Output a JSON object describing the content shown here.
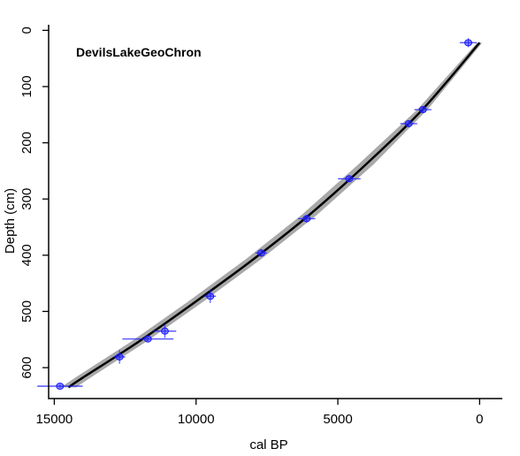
{
  "chart_data": {
    "type": "line",
    "title": "DevilsLakeGeoChron",
    "xlabel": "cal BP",
    "ylabel": "Depth (cm)",
    "xlim": [
      15200,
      -800
    ],
    "ylim": [
      655,
      -10
    ],
    "x_reversed": true,
    "y_reversed": true,
    "x_ticks": [
      15000,
      10000,
      5000,
      0
    ],
    "y_ticks": [
      0,
      100,
      200,
      300,
      400,
      500,
      600
    ],
    "series": [
      {
        "kind": "age-depth median",
        "points": [
          {
            "x": 0,
            "y": 22
          },
          {
            "x": 2000,
            "y": 140
          },
          {
            "x": 4000,
            "y": 238
          },
          {
            "x": 6000,
            "y": 328
          },
          {
            "x": 8000,
            "y": 408
          },
          {
            "x": 10000,
            "y": 482
          },
          {
            "x": 12000,
            "y": 553
          },
          {
            "x": 14000,
            "y": 618
          },
          {
            "x": 14500,
            "y": 635
          }
        ]
      },
      {
        "kind": "dated samples",
        "points": [
          {
            "x": 400,
            "y": 22,
            "x_err": 300,
            "y_err": 8
          },
          {
            "x": 2000,
            "y": 141,
            "x_err": 300,
            "y_err": 5
          },
          {
            "x": 2500,
            "y": 166,
            "x_err": 300,
            "y_err": 5
          },
          {
            "x": 4600,
            "y": 264,
            "x_err": 400,
            "y_err": 5
          },
          {
            "x": 6100,
            "y": 335,
            "x_err": 300,
            "y_err": 7
          },
          {
            "x": 7700,
            "y": 396,
            "x_err": 200,
            "y_err": 7
          },
          {
            "x": 9500,
            "y": 473,
            "x_err": 200,
            "y_err": 12
          },
          {
            "x": 11100,
            "y": 535,
            "x_err": 400,
            "y_err": 12
          },
          {
            "x": 11700,
            "y": 549,
            "x_err": 900,
            "y_err": 4
          },
          {
            "x": 12700,
            "y": 581,
            "x_err": 200,
            "y_err": 12
          },
          {
            "x": 14800,
            "y": 633,
            "x_err": 800,
            "y_err": 3
          }
        ]
      }
    ],
    "grid": false,
    "colors": {
      "median": "#000000",
      "ribbon": "#9a9a9a",
      "samples": "#1a1aff"
    }
  }
}
